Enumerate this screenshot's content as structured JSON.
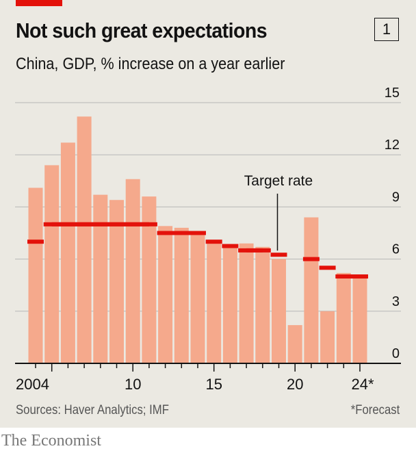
{
  "header": {
    "title": "Not such great expectations",
    "chart_number": "1",
    "subtitle": "China, GDP, % increase on a year earlier"
  },
  "footer": {
    "sources": "Sources: Haver Analytics; IMF",
    "footnote": "*Forecast",
    "logo": "The Economist"
  },
  "colors": {
    "bars": "#f5a98c",
    "target": "#e3120b",
    "brand": "#e3120b",
    "background": "#ebe9e2"
  },
  "chart_data": {
    "type": "bar",
    "title": "Not such great expectations",
    "subtitle": "China, GDP, % increase on a year earlier",
    "categories": [
      2004,
      2005,
      2006,
      2007,
      2008,
      2009,
      2010,
      2011,
      2012,
      2013,
      2014,
      2015,
      2016,
      2017,
      2018,
      2019,
      2020,
      2021,
      2022,
      2023,
      2024
    ],
    "series": [
      {
        "values": [
          10.1,
          11.4,
          12.7,
          14.2,
          9.7,
          9.4,
          10.6,
          9.6,
          7.9,
          7.8,
          7.4,
          7.0,
          6.8,
          6.9,
          6.7,
          6.0,
          2.2,
          8.4,
          3.0,
          5.2,
          5.0
        ]
      },
      {
        "name": "Target rate",
        "style": "marker",
        "values": [
          7.0,
          8,
          8,
          8,
          8,
          8,
          8,
          8,
          7.5,
          7.5,
          7.5,
          7.0,
          6.75,
          6.5,
          6.5,
          6.25,
          null,
          6.0,
          5.5,
          5.0,
          5.0
        ]
      }
    ],
    "annotation": {
      "text": "Target rate",
      "points_to": 2019
    },
    "x_tick_labels": [
      "2004",
      "10",
      "15",
      "20",
      "24*"
    ],
    "x_tick_label_years": [
      2004,
      2010,
      2015,
      2020,
      2024
    ],
    "y_ticks": [
      0,
      3,
      6,
      9,
      12,
      15
    ],
    "ylim": [
      0,
      15
    ],
    "y_axis_side": "right",
    "grid": true
  }
}
